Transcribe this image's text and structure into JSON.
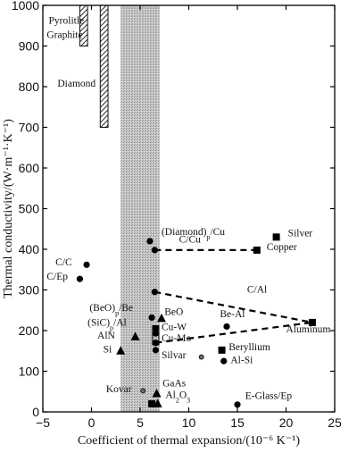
{
  "chart_data": {
    "type": "scatter",
    "xlabel": "Coefficient of thermal expansion/(10⁻⁶ K⁻¹)",
    "ylabel": "Thermal conductivity/(W·m⁻¹·K⁻¹)",
    "xlim": [
      -5,
      25
    ],
    "ylim": [
      0,
      1000
    ],
    "xticks": [
      -5,
      0,
      5,
      10,
      15,
      20,
      25
    ],
    "yticks": [
      0,
      100,
      200,
      300,
      400,
      500,
      600,
      700,
      800,
      900,
      1000
    ],
    "grid": false,
    "shaded_band": {
      "x_range": [
        3,
        7
      ]
    },
    "hatched_regions": [
      {
        "label": "Pyrolitle Graphite",
        "x_range": [
          -1.2,
          -0.4
        ],
        "y_range": [
          900,
          1000
        ]
      },
      {
        "label": "Diamond",
        "x_range": [
          0.9,
          1.7
        ],
        "y_range": [
          700,
          1000
        ]
      }
    ],
    "points": [
      {
        "label": "(Diamond)p/Cu",
        "x": 6.0,
        "y": 420,
        "marker": "circle"
      },
      {
        "label": "C/Cu",
        "x": 6.5,
        "y": 398,
        "marker": "circle"
      },
      {
        "label": "Silver",
        "x": 19.0,
        "y": 430,
        "marker": "square"
      },
      {
        "label": "Copper",
        "x": 17.0,
        "y": 398,
        "marker": "square"
      },
      {
        "label": "C/C",
        "x": -0.5,
        "y": 362,
        "marker": "circle"
      },
      {
        "label": "C/Ep",
        "x": -1.2,
        "y": 327,
        "marker": "circle"
      },
      {
        "label": "C/Al",
        "x": 6.5,
        "y": 295,
        "marker": "circle"
      },
      {
        "label": "(BeO)p/Be",
        "x": 6.2,
        "y": 232,
        "marker": "circle"
      },
      {
        "label": "BeO",
        "x": 7.2,
        "y": 230,
        "marker": "triangle"
      },
      {
        "label": "Be-Al",
        "x": 13.9,
        "y": 210,
        "marker": "circle"
      },
      {
        "label": "Aluminum",
        "x": 22.7,
        "y": 220,
        "marker": "square"
      },
      {
        "label": "(SiC)p/Al",
        "x": 6.6,
        "y": 205,
        "marker": "circle"
      },
      {
        "label": "Cu-W",
        "x": 6.6,
        "y": 193,
        "marker": "circle"
      },
      {
        "label": "AlN",
        "x": 4.5,
        "y": 185,
        "marker": "triangle"
      },
      {
        "label": "Cu-Mo",
        "x": 6.6,
        "y": 170,
        "marker": "circle"
      },
      {
        "label": "Beryllium",
        "x": 13.4,
        "y": 152,
        "marker": "square"
      },
      {
        "label": "Si",
        "x": 3.0,
        "y": 150,
        "marker": "triangle"
      },
      {
        "label": "Silvar",
        "x": 6.6,
        "y": 152,
        "marker": "circle"
      },
      {
        "label": "Silvar",
        "x": 11.3,
        "y": 135,
        "marker": "small-circle"
      },
      {
        "label": "Al-Si",
        "x": 13.6,
        "y": 125,
        "marker": "circle"
      },
      {
        "label": "Kovar",
        "x": 5.3,
        "y": 52,
        "marker": "small-circle"
      },
      {
        "label": "GaAs",
        "x": 6.7,
        "y": 45,
        "marker": "triangle"
      },
      {
        "label": "Al₂O₃",
        "x": 6.8,
        "y": 20,
        "marker": "triangle"
      },
      {
        "label": "Al₂O₃",
        "x": 6.2,
        "y": 20,
        "marker": "square"
      },
      {
        "label": "E-Glass/Ep",
        "x": 15.0,
        "y": 18,
        "marker": "circle"
      }
    ],
    "dashed_connectors": [
      {
        "from": [
          6.5,
          398
        ],
        "to": [
          17.0,
          398
        ]
      },
      {
        "from": [
          6.5,
          295
        ],
        "to": [
          22.7,
          220
        ]
      },
      {
        "from": [
          6.6,
          170
        ],
        "to": [
          22.7,
          220
        ]
      }
    ],
    "bracket": {
      "x": 6.6,
      "y_range": [
        165,
        212
      ]
    },
    "annotations": [
      {
        "text": "(Diamond)",
        "sub": "p",
        "tail": "/Cu",
        "x": 7.2,
        "y": 435
      },
      {
        "text": "C/Cu",
        "x": 9.0,
        "y": 417
      },
      {
        "text": "Silver",
        "x": 20.2,
        "y": 432
      },
      {
        "text": "Copper",
        "x": 18.0,
        "y": 398
      },
      {
        "text": "C/C",
        "x": -3.7,
        "y": 360
      },
      {
        "text": "C/Ep",
        "x": -4.6,
        "y": 325
      },
      {
        "text": "C/Al",
        "x": 16.0,
        "y": 293
      },
      {
        "text": "(BeO)",
        "sub": "p",
        "tail": "/Be",
        "x": -0.2,
        "y": 248
      },
      {
        "text": "BeO",
        "x": 7.5,
        "y": 238
      },
      {
        "text": "Be-Al",
        "x": 13.2,
        "y": 233
      },
      {
        "text": "Aluminum",
        "x": 20.0,
        "y": 196
      },
      {
        "text": "(SiC)",
        "sub": "p",
        "tail": "/Al",
        "x": -0.4,
        "y": 212
      },
      {
        "text": "Cu-W",
        "x": 7.2,
        "y": 201
      },
      {
        "text": "AlN",
        "x": 0.6,
        "y": 180
      },
      {
        "text": "Cu-Mo",
        "x": 7.2,
        "y": 174
      },
      {
        "text": "Beryllium",
        "x": 14.1,
        "y": 152
      },
      {
        "text": "Si",
        "x": 1.2,
        "y": 146
      },
      {
        "text": "Silvar",
        "x": 7.2,
        "y": 132
      },
      {
        "text": "Al-Si",
        "x": 14.3,
        "y": 120
      },
      {
        "text": "Kovar",
        "x": 1.5,
        "y": 48
      },
      {
        "text": "GaAs",
        "x": 7.3,
        "y": 63
      },
      {
        "text": "Al",
        "sub": "2",
        "tail": "O",
        "sub2": "3",
        "x": 7.6,
        "y": 34
      },
      {
        "text": "E-Glass/Ep",
        "x": 15.8,
        "y": 32
      },
      {
        "text": "Pyrolitle",
        "x": -4.4,
        "y": 955
      },
      {
        "text": "Graphite",
        "x": -4.6,
        "y": 920
      },
      {
        "text": "Diamond",
        "x": -3.5,
        "y": 800
      }
    ]
  }
}
